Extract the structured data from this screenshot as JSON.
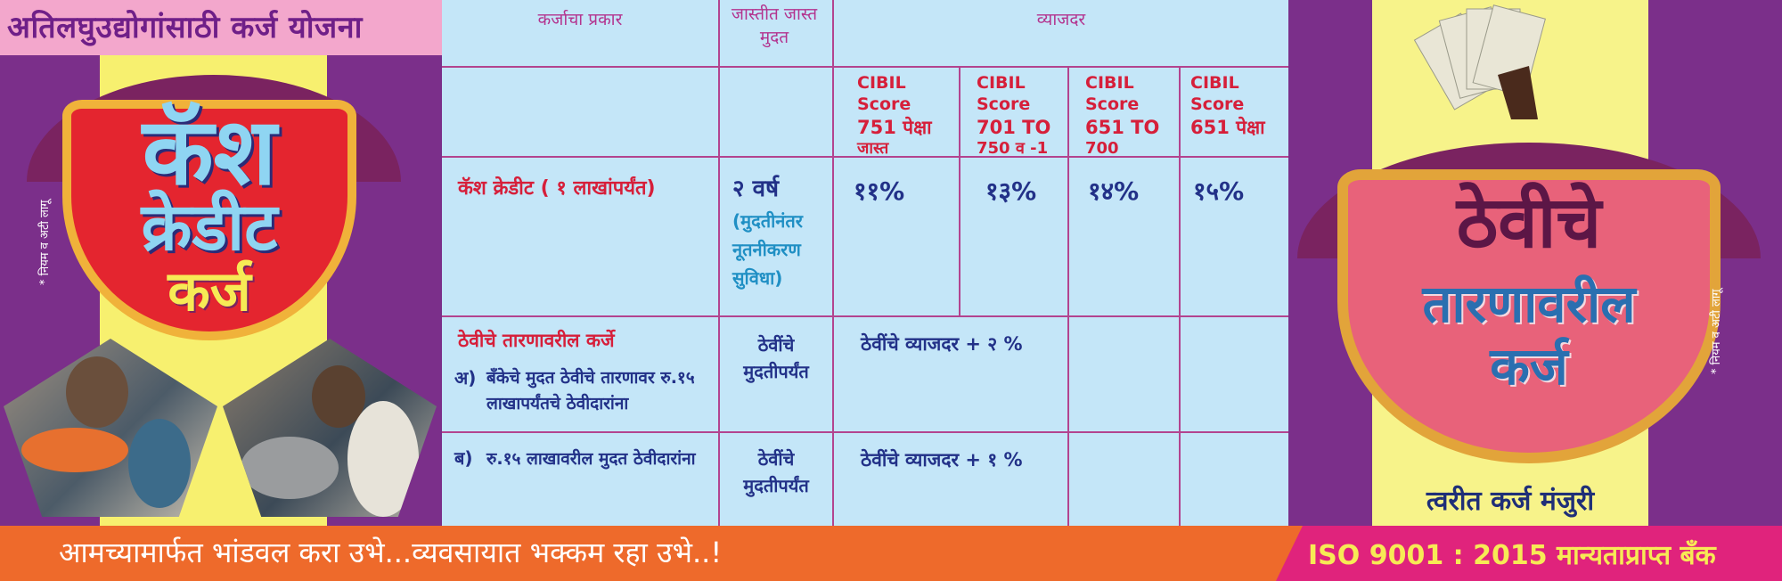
{
  "left_banner": {
    "scheme_title": "अतिलघुउद्योगांसाठी कर्ज योजना",
    "title_line1": "कॅश",
    "title_line2": "क्रेडीट",
    "title_line3": "कर्ज",
    "side_note": "* नियम व अटी लागू"
  },
  "table": {
    "headers": {
      "loan_type": "कर्जाचा प्रकार",
      "max_term": "जास्तीत जास्त मुदत",
      "interest": "व्याजदर"
    },
    "cibil_bands": [
      {
        "line1": "CIBIL Score",
        "line2": "751 पेक्षा",
        "line3": "जास्त"
      },
      {
        "line1": "CIBIL Score",
        "line2": "701 TO",
        "line3": "750 व -1"
      },
      {
        "line1": "CIBIL Score",
        "line2": "651 TO",
        "line3": "700"
      },
      {
        "line1": "CIBIL Score",
        "line2": "651 पेक्षा",
        "line3": ""
      }
    ],
    "row_cash": {
      "type": "कॅश क्रेडीट ( १ लाखांपर्यंत)",
      "term": "२ वर्ष",
      "term_note": "(मुदतीनंतर नूतनीकरण सुविधा)",
      "rates": [
        "११%",
        "१३%",
        "१४%",
        "१५%"
      ]
    },
    "row_deposit_a": {
      "title": "ठेवीचे तारणावरील कर्जे",
      "label": "अ)",
      "desc": "बँकेचे मुदत ठेवीचे तारणावर रु.१५ लाखापर्यंतचे ठेवीदारांना",
      "term": "ठेवींचे मुदतीपर्यंत",
      "rate": "ठेवींचे व्याजदर  + २ %"
    },
    "row_deposit_b": {
      "label": "ब)",
      "desc": "रु.१५ लाखावरील मुदत ठेवीदारांना",
      "term": "ठेवींचे मुदतीपर्यंत",
      "rate": "ठेवींचे व्याजदर  + १ %"
    }
  },
  "right_banner": {
    "title_line1": "ठेवीचे",
    "title_line2": "तारणावरील",
    "title_line3": "कर्ज",
    "tagline": "त्वरीत कर्ज मंजुरी",
    "side_note": "* नियम व अटी लागू"
  },
  "footer": {
    "slogan": "आमच्यामार्फत भांडवल करा उभे...व्यवसायात भक्कम रहा उभे..!",
    "certification": "ISO 9001 : 2015 मान्यताप्राप्त बँक"
  }
}
